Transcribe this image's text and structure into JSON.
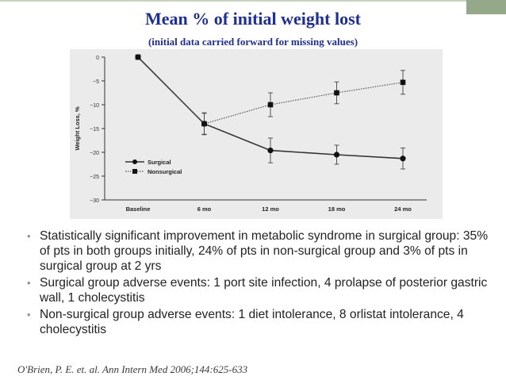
{
  "slide": {
    "title": "Mean % of initial weight lost",
    "subtitle": "(initial data carried forward for missing values)",
    "bullets": [
      "Statistically significant improvement in metabolic syndrome in surgical group:  35% of pts in both groups initially, 24% of pts in non-surgical group and 3% of pts in surgical group at 2 yrs",
      "Surgical group adverse events:  1 port site infection, 4 prolapse of posterior gastric wall, 1 cholecystitis",
      "Non-surgical group adverse events:  1 diet intolerance, 8 orlistat intolerance, 4 cholecystitis"
    ],
    "citation": "O'Brien, P. E. et. al. Ann Intern Med 2006;144:625-633",
    "colors": {
      "title": "#1f2f8f",
      "accent": "#95a88a",
      "bullet_dot": "#8a9a82"
    }
  },
  "chart_data": {
    "type": "line",
    "ylabel": "Weight Loss, %",
    "categories": [
      "Baseline",
      "6 mo",
      "12 mo",
      "18 mo",
      "24 mo"
    ],
    "ylim": [
      -30,
      0
    ],
    "yticks": [
      0,
      -5,
      -10,
      -15,
      -20,
      -25,
      -30
    ],
    "grid": false,
    "legend_position": "lower-left",
    "series": [
      {
        "name": "Surgical",
        "values": [
          0,
          -14,
          -19.6,
          -20.5,
          -21.3
        ],
        "errors": [
          0,
          2.3,
          2.6,
          2.0,
          2.2
        ],
        "marker": "circle",
        "line": "solid"
      },
      {
        "name": "Nonsurgical",
        "values": [
          0,
          -14,
          -10,
          -7.5,
          -5.3
        ],
        "errors": [
          0,
          2.2,
          2.5,
          2.3,
          2.5
        ],
        "marker": "square",
        "line": "dotted"
      }
    ]
  }
}
